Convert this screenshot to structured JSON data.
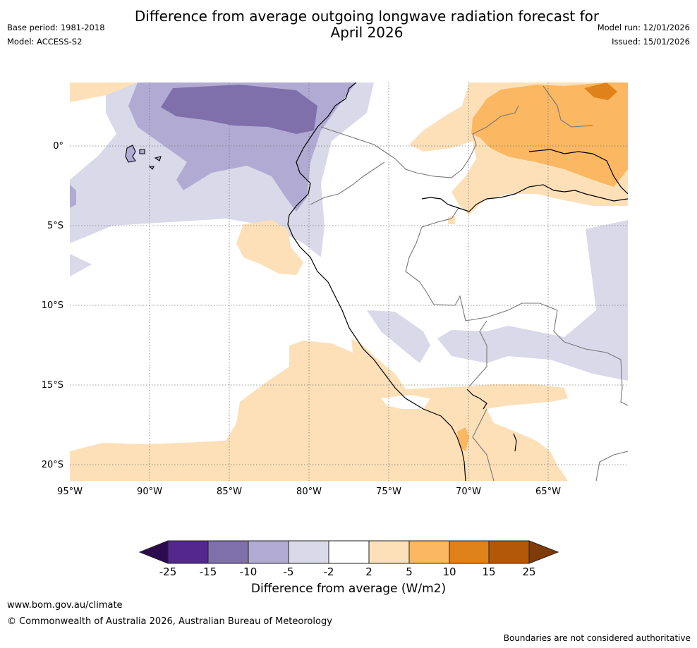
{
  "title": {
    "line1": "Difference from average outgoing longwave radiation forecast for",
    "line2": "April 2026"
  },
  "meta": {
    "base_period": "Base period: 1981-2018",
    "model": "Model: ACCESS-S2",
    "model_run": "Model run: 12/01/2026",
    "issued": "Issued: 15/01/2026"
  },
  "map": {
    "lon_labels": [
      "95°W",
      "90°W",
      "85°W",
      "80°W",
      "75°W",
      "70°W",
      "65°W"
    ],
    "lat_labels": [
      "0°",
      "5°S",
      "10°S",
      "15°S",
      "20°S"
    ]
  },
  "colorbar": {
    "ticks": [
      "-25",
      "-15",
      "-10",
      "-5",
      "-2",
      "2",
      "5",
      "10",
      "15",
      "25"
    ],
    "colors": [
      "#2d0a4e",
      "#54278f",
      "#7f6fab",
      "#b1abd3",
      "#d9d9ea",
      "#ffffff",
      "#fde0b8",
      "#fbb761",
      "#e0821a",
      "#b35808",
      "#7f3b08"
    ],
    "title": "Difference from average (W/m2)"
  },
  "footer": {
    "url": "www.bom.gov.au/climate",
    "copyright": "© Commonwealth of Australia 2026, Australian Bureau of Meteorology",
    "note": "Boundaries are not considered authoritative"
  }
}
